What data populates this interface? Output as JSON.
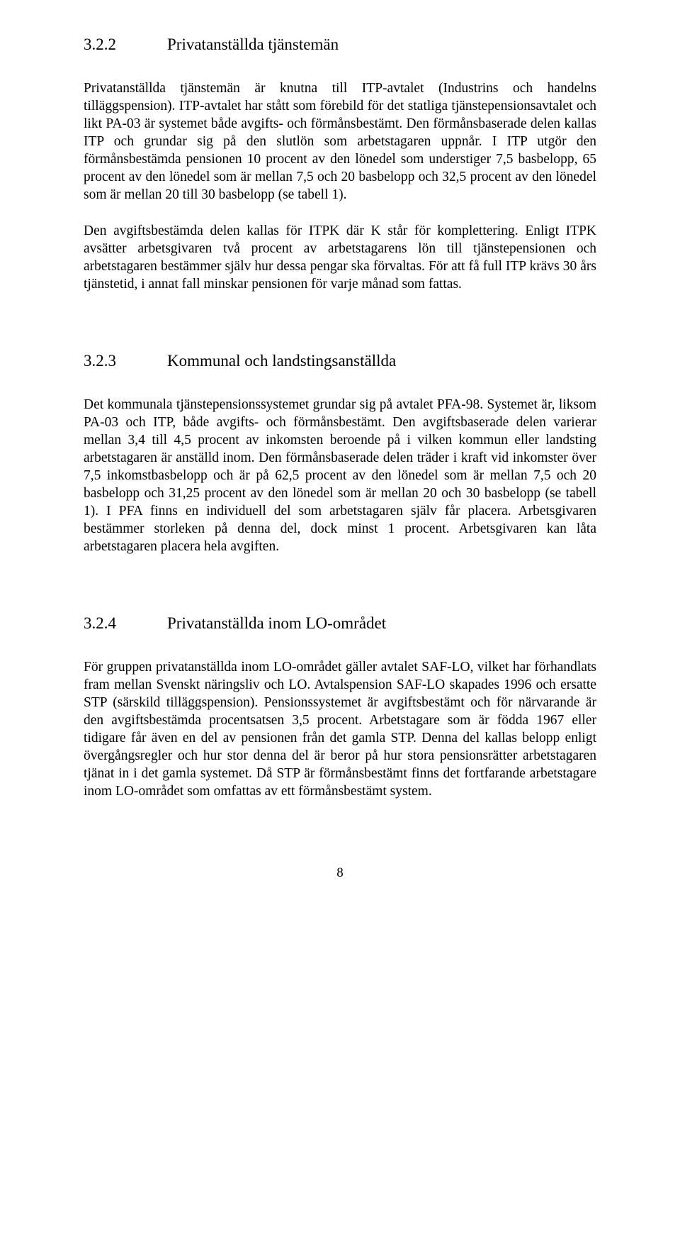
{
  "section322": {
    "number": "3.2.2",
    "title": "Privatanställda tjänstemän",
    "paragraph1": "Privatanställda tjänstemän är knutna till ITP-avtalet (Industrins och handelns tilläggspension). ITP-avtalet har stått som förebild för det statliga tjänstepensionsavtalet och likt PA-03 är systemet både avgifts- och förmånsbestämt. Den förmånsbaserade delen kallas ITP och grundar sig på den slutlön som arbetstagaren uppnår. I ITP utgör den förmånsbestämda pensionen 10 procent av den lönedel som understiger 7,5 basbelopp, 65 procent av den lönedel som är mellan 7,5 och 20 basbelopp och 32,5 procent av den lönedel som är mellan 20 till 30 basbelopp (se tabell 1).",
    "paragraph2": "Den avgiftsbestämda delen kallas för ITPK där K står för komplettering. Enligt ITPK avsätter arbetsgivaren två procent av arbetstagarens lön till tjänstepensionen och arbetstagaren bestämmer själv hur dessa pengar ska förvaltas. För att få full ITP krävs 30 års tjänstetid, i annat fall minskar pensionen för varje månad som fattas."
  },
  "section323": {
    "number": "3.2.3",
    "title": "Kommunal och landstingsanställda",
    "paragraph1": "Det kommunala tjänstepensionssystemet grundar sig på avtalet PFA-98. Systemet är, liksom PA-03 och ITP, både avgifts- och förmånsbestämt. Den avgiftsbaserade delen varierar mellan 3,4 till 4,5 procent av inkomsten beroende på i vilken kommun eller landsting arbetstagaren är anställd inom. Den förmånsbaserade delen träder i kraft vid inkomster över 7,5 inkomstbasbelopp och är på 62,5 procent av den lönedel som är mellan 7,5 och 20 basbelopp och 31,25 procent av den lönedel som är mellan 20 och 30 basbelopp (se tabell 1).  I PFA finns en individuell del som arbetstagaren själv får placera. Arbetsgivaren bestämmer storleken på denna del, dock minst 1 procent. Arbetsgivaren kan låta arbetstagaren placera hela avgiften."
  },
  "section324": {
    "number": "3.2.4",
    "title": "Privatanställda inom LO-området",
    "paragraph1": "För gruppen privatanställda inom LO-området gäller avtalet SAF-LO, vilket har förhandlats fram mellan Svenskt näringsliv och LO. Avtalspension SAF-LO skapades 1996 och ersatte STP (särskild tilläggspension). Pensionssystemet är avgiftsbestämt och för närvarande är den avgiftsbestämda procentsatsen 3,5 procent. Arbetstagare som är födda 1967 eller tidigare får även en del av pensionen från det gamla STP.  Denna del kallas belopp enligt övergångsregler och hur stor denna del är beror på hur stora pensionsrätter arbetstagaren tjänat in i det gamla systemet. Då STP är förmånsbestämt finns det fortfarande arbetstagare inom LO-området som omfattas av ett förmånsbestämt system."
  },
  "pageNumber": "8"
}
